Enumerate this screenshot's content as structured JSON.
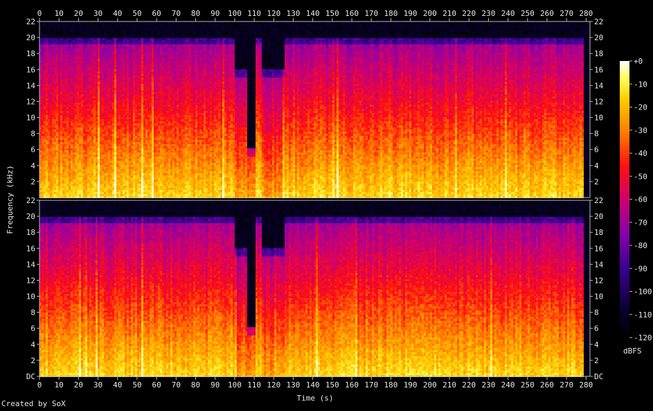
{
  "chart_data": {
    "type": "heatmap",
    "title": "",
    "xlabel": "Time (s)",
    "ylabel": "Frequency (kHz)",
    "x_ticks": [
      0,
      10,
      20,
      30,
      40,
      50,
      60,
      70,
      80,
      90,
      100,
      110,
      120,
      130,
      140,
      150,
      160,
      170,
      180,
      190,
      200,
      210,
      220,
      230,
      240,
      250,
      260,
      270,
      280
    ],
    "xlim": [
      0,
      282
    ],
    "ylim": [
      0,
      22
    ],
    "y_tick_labels": [
      "DC",
      "2",
      "4",
      "6",
      "8",
      "10",
      "12",
      "14",
      "16",
      "18",
      "20",
      "22"
    ],
    "channels": 2,
    "colorbar": {
      "label": "dBFS",
      "ticks": [
        "+0",
        "-10",
        "-20",
        "-30",
        "-40",
        "-50",
        "-60",
        "-70",
        "-80",
        "-90",
        "-100",
        "-110",
        "-120"
      ],
      "range": [
        -120,
        0
      ]
    },
    "approx_cutoff_khz": [
      {
        "t_start": 0,
        "t_end": 100,
        "cutoff": 20
      },
      {
        "t_start": 100,
        "t_end": 106,
        "cutoff": 16
      },
      {
        "t_start": 106,
        "t_end": 110,
        "cutoff": 6
      },
      {
        "t_start": 110,
        "t_end": 113,
        "cutoff": 20
      },
      {
        "t_start": 113,
        "t_end": 125,
        "cutoff": 16
      },
      {
        "t_start": 125,
        "t_end": 278,
        "cutoff": 20
      },
      {
        "t_start": 278,
        "t_end": 282,
        "cutoff": 0
      }
    ]
  },
  "footer": {
    "credit": "Created by SoX"
  }
}
